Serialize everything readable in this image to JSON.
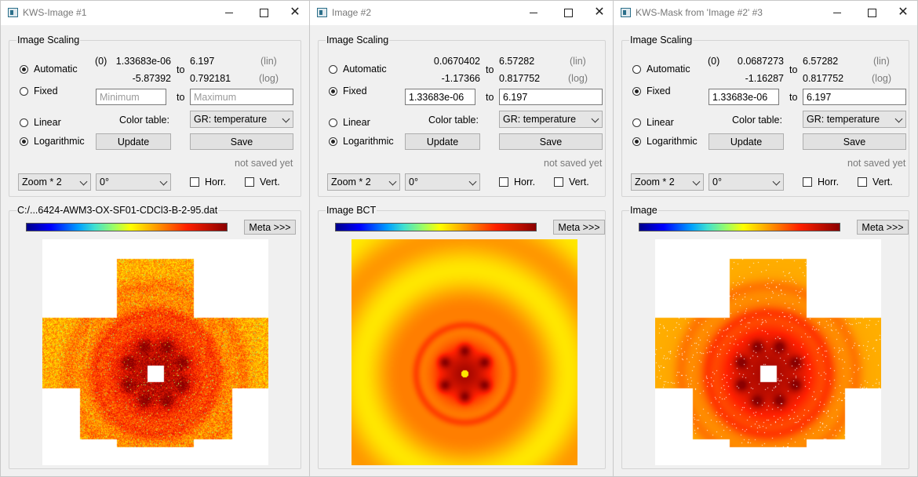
{
  "windows": [
    {
      "title": "KWS-Image #1",
      "group_title": "Image Scaling",
      "mode": "automatic",
      "scale": "logarithmic",
      "labels": {
        "automatic": "Automatic",
        "fixed": "Fixed",
        "linear": "Linear",
        "logarithmic": "Logarithmic",
        "color_table": "Color table:",
        "to": "to",
        "lin": "(lin)",
        "log": "(log)",
        "horr": "Horr.",
        "vert": "Vert.",
        "update": "Update",
        "save": "Save",
        "meta": "Meta >>>"
      },
      "zero_marker": "(0)",
      "lin_min": "1.33683e-06",
      "lin_max": "6.197",
      "log_min": "-5.87392",
      "log_max": "0.792181",
      "fixed_min_value": "",
      "fixed_max_value": "",
      "fixed_min_placeholder": "Minimum",
      "fixed_max_placeholder": "Maximum",
      "color_table": "GR: temperature",
      "save_status": "not saved yet",
      "zoom": "Zoom * 2",
      "rotation": "0°",
      "image_label": "C:/...6424-AWM3-OX-SF01-CDCl3-B-2-95.dat",
      "image_kind": "raw"
    },
    {
      "title": "Image #2",
      "group_title": "Image Scaling",
      "mode": "fixed",
      "scale": "logarithmic",
      "labels": {
        "automatic": "Automatic",
        "fixed": "Fixed",
        "linear": "Linear",
        "logarithmic": "Logarithmic",
        "color_table": "Color table:",
        "to": "to",
        "lin": "(lin)",
        "log": "(log)",
        "horr": "Horr.",
        "vert": "Vert.",
        "update": "Update",
        "save": "Save",
        "meta": "Meta >>>"
      },
      "zero_marker": "",
      "lin_min": "0.0670402",
      "lin_max": "6.57282",
      "log_min": "-1.17366",
      "log_max": "0.817752",
      "fixed_min_value": "1.33683e-06",
      "fixed_max_value": "6.197",
      "fixed_min_placeholder": "",
      "fixed_max_placeholder": "",
      "color_table": "GR: temperature",
      "save_status": "not saved yet",
      "zoom": "Zoom * 2",
      "rotation": "0°",
      "image_label": "Image BCT",
      "image_kind": "bct"
    },
    {
      "title": "KWS-Mask from 'Image #2' #3",
      "group_title": "Image Scaling",
      "mode": "fixed",
      "scale": "logarithmic",
      "labels": {
        "automatic": "Automatic",
        "fixed": "Fixed",
        "linear": "Linear",
        "logarithmic": "Logarithmic",
        "color_table": "Color table:",
        "to": "to",
        "lin": "(lin)",
        "log": "(log)",
        "horr": "Horr.",
        "vert": "Vert.",
        "update": "Update",
        "save": "Save",
        "meta": "Meta >>>"
      },
      "zero_marker": "(0)",
      "lin_min": "0.0687273",
      "lin_max": "6.57282",
      "log_min": "-1.16287",
      "log_max": "0.817752",
      "fixed_min_value": "1.33683e-06",
      "fixed_max_value": "6.197",
      "fixed_min_placeholder": "",
      "fixed_max_placeholder": "",
      "color_table": "GR: temperature",
      "save_status": "not saved yet",
      "zoom": "Zoom * 2",
      "rotation": "0°",
      "image_label": "Image",
      "image_kind": "mask"
    }
  ],
  "colors": {
    "selected_accent": "#222222",
    "colorbar_low": "#00008b",
    "colorbar_high": "#8b0000",
    "image_base_orange": "#ffc000"
  }
}
